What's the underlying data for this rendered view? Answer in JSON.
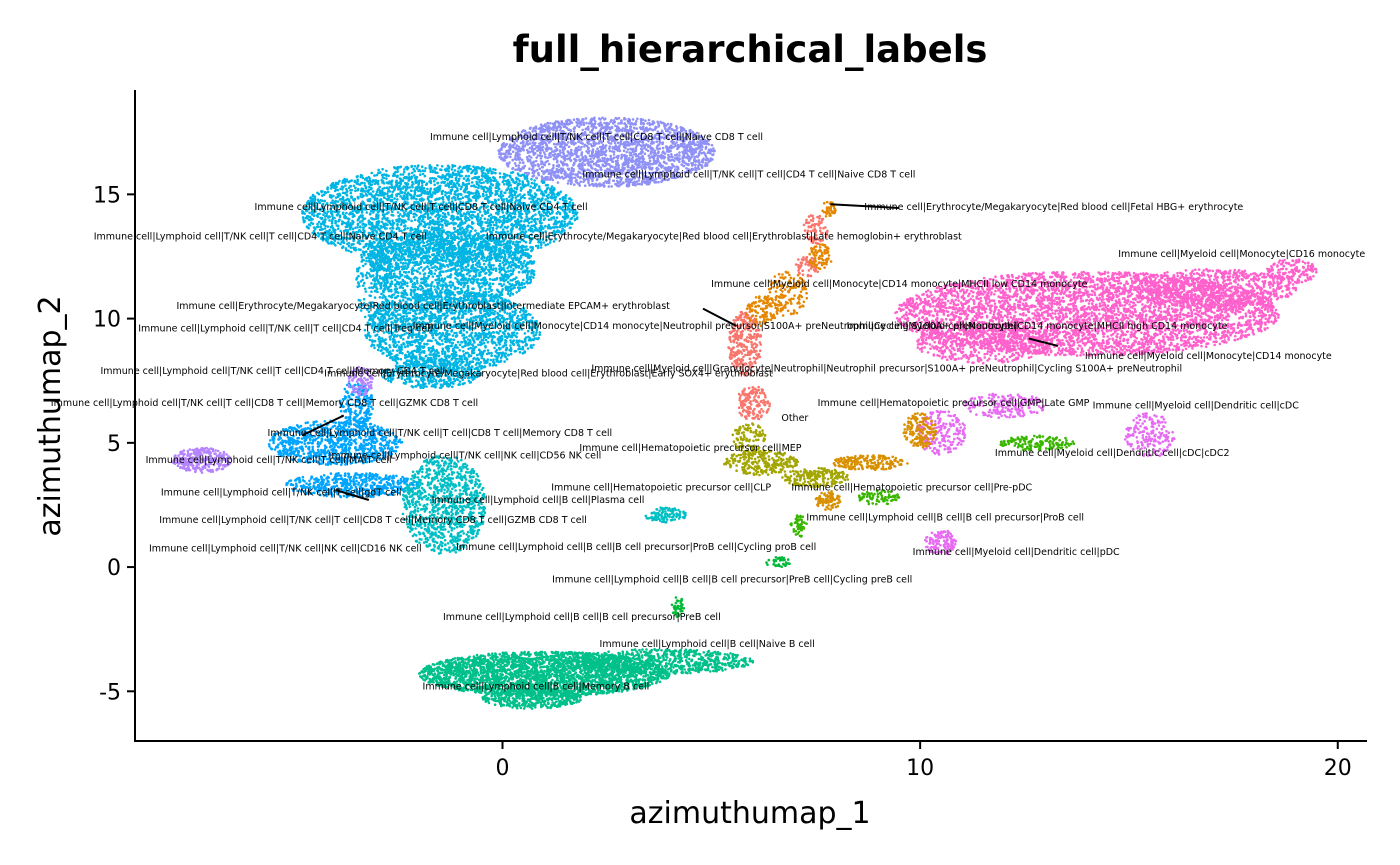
{
  "chart_data": {
    "type": "scatter",
    "title": "full_hierarchical_labels",
    "xlabel": "azimuthumap_1",
    "ylabel": "azimuthumap_2",
    "xlim": [
      -8.8,
      20.7
    ],
    "ylim": [
      -7.0,
      19.2
    ],
    "xticks": [
      {
        "value": 0,
        "label": "0"
      },
      {
        "value": 10,
        "label": "10"
      },
      {
        "value": 20,
        "label": "20"
      }
    ],
    "yticks": [
      {
        "value": -5,
        "label": "-5"
      },
      {
        "value": 0,
        "label": "0"
      },
      {
        "value": 5,
        "label": "5"
      },
      {
        "value": 10,
        "label": "10"
      },
      {
        "value": 15,
        "label": "15"
      }
    ],
    "grid": false,
    "legend": "none",
    "clusters": [
      {
        "color": "#8F91F6",
        "blobs": [
          [
            2.5,
            16.7,
            2.6,
            1.4,
            2200
          ]
        ]
      },
      {
        "color": "#00B5E3",
        "blobs": [
          [
            -1.5,
            14.2,
            3.3,
            2.0,
            3500
          ],
          [
            -1.2,
            12.0,
            2.0,
            1.5,
            1500
          ],
          [
            -1.2,
            9.5,
            2.1,
            1.6,
            1800
          ],
          [
            -1.7,
            7.8,
            1.2,
            0.6,
            400
          ],
          [
            -3.0,
            11.5,
            0.5,
            2.0,
            300
          ]
        ]
      },
      {
        "color": "#00A5FF",
        "blobs": [
          [
            -4.0,
            5.0,
            1.6,
            0.9,
            800
          ],
          [
            -3.6,
            3.3,
            1.6,
            0.5,
            500
          ],
          [
            -3.5,
            6.5,
            0.4,
            1.0,
            200
          ]
        ]
      },
      {
        "color": "#B584FF",
        "blobs": [
          [
            -7.2,
            4.3,
            0.7,
            0.5,
            280
          ],
          [
            -3.4,
            7.5,
            0.3,
            0.6,
            100
          ]
        ]
      },
      {
        "color": "#00BFC4",
        "blobs": [
          [
            -1.4,
            2.5,
            1.0,
            2.0,
            1000
          ],
          [
            3.9,
            2.1,
            0.5,
            0.3,
            100
          ]
        ]
      },
      {
        "color": "#00C08B",
        "blobs": [
          [
            1.0,
            -4.3,
            3.0,
            0.9,
            2800
          ],
          [
            3.8,
            -3.8,
            2.2,
            0.5,
            700
          ],
          [
            0.7,
            -5.3,
            1.2,
            0.4,
            400
          ]
        ]
      },
      {
        "color": "#FF61CC",
        "blobs": [
          [
            14.0,
            10.2,
            4.6,
            1.7,
            4200
          ],
          [
            17.0,
            11.2,
            2.0,
            0.8,
            800
          ],
          [
            11.5,
            9.0,
            1.6,
            0.8,
            500
          ],
          [
            18.9,
            11.9,
            0.6,
            0.5,
            160
          ]
        ]
      },
      {
        "color": "#E76BF3",
        "blobs": [
          [
            10.5,
            5.4,
            0.6,
            0.9,
            220
          ],
          [
            12.0,
            6.5,
            1.0,
            0.5,
            200
          ],
          [
            15.5,
            5.3,
            0.6,
            0.9,
            180
          ],
          [
            10.5,
            1.0,
            0.4,
            0.5,
            120
          ]
        ]
      },
      {
        "color": "#F8766D",
        "blobs": [
          [
            5.8,
            9.0,
            0.4,
            1.3,
            300
          ],
          [
            6.0,
            6.6,
            0.4,
            0.7,
            150
          ],
          [
            7.5,
            13.6,
            0.3,
            0.6,
            80
          ],
          [
            7.3,
            12.1,
            0.3,
            0.4,
            60
          ]
        ]
      },
      {
        "color": "#E58700",
        "blobs": [
          [
            6.8,
            11.0,
            0.5,
            0.9,
            150
          ],
          [
            6.2,
            10.3,
            0.4,
            0.6,
            100
          ],
          [
            7.6,
            12.5,
            0.3,
            0.5,
            80
          ],
          [
            7.8,
            14.4,
            0.2,
            0.3,
            40
          ]
        ]
      },
      {
        "color": "#A3A500",
        "blobs": [
          [
            6.2,
            4.2,
            0.9,
            0.5,
            250
          ],
          [
            7.5,
            3.6,
            0.8,
            0.4,
            200
          ],
          [
            5.9,
            5.2,
            0.4,
            0.6,
            100
          ]
        ]
      },
      {
        "color": "#D89000",
        "blobs": [
          [
            8.8,
            4.2,
            0.9,
            0.3,
            200
          ],
          [
            10.0,
            5.5,
            0.4,
            0.7,
            160
          ],
          [
            7.8,
            2.7,
            0.3,
            0.4,
            80
          ]
        ]
      },
      {
        "color": "#39B600",
        "blobs": [
          [
            12.8,
            5.0,
            0.9,
            0.3,
            150
          ],
          [
            9.0,
            2.8,
            0.5,
            0.3,
            80
          ],
          [
            7.1,
            1.7,
            0.2,
            0.5,
            50
          ]
        ]
      },
      {
        "color": "#00BA38",
        "blobs": [
          [
            4.2,
            -1.6,
            0.15,
            0.4,
            40
          ],
          [
            6.6,
            0.2,
            0.3,
            0.2,
            40
          ]
        ]
      }
    ],
    "annotations": [
      {
        "text": "Immune cell|Lymphoid cell|T/NK cell|T cell|CD8 T cell|Naive CD8 T cell",
        "x": 2.25,
        "y": 17.3
      },
      {
        "text": "Immune cell|Lymphoid cell|T/NK cell|T cell|CD4 T cell|Naive CD8 T cell",
        "x": 5.9,
        "y": 15.8
      },
      {
        "text": "Immune cell|Lymphoid cell|T/NK cell|T cell|CD8 T cell|Naive CD4 T cell",
        "x": -1.95,
        "y": 14.5
      },
      {
        "text": "Immune cell|Lymphoid cell|T/NK cell|T cell|CD4 T cell|Naive CD4 T cell",
        "x": -5.8,
        "y": 13.3
      },
      {
        "text": "Immune cell|Erythrocyte/Megakaryocyte|Red blood cell|Erythroblast|Late hemoglobin+ erythroblast",
        "x": 5.3,
        "y": 13.3
      },
      {
        "text": "Immune cell|Erythrocyte/Megakaryocyte|Red blood cell|Fetal HBG+ erythrocyte",
        "x": 13.2,
        "y": 14.5
      },
      {
        "text": "Immune cell|Myeloid cell|Monocyte|CD16 monocyte",
        "x": 17.7,
        "y": 12.6
      },
      {
        "text": "Immune cell|Myeloid cell|Monocyte|CD14 monocyte|MHCII low CD14 monocyte",
        "x": 9.5,
        "y": 11.4
      },
      {
        "text": "Immune cell|Erythrocyte/Megakaryocyte|Red blood cell|Erythroblast|Intermediate EPCAM+ erythroblast",
        "x": -1.9,
        "y": 10.5
      },
      {
        "text": "Immune cell|Lymphoid cell|T/NK cell|T cell|CD4 T cell|Treg cell",
        "x": -5.2,
        "y": 9.6
      },
      {
        "text": "Immune cell|Myeloid cell|Monocyte|CD14 monocyte|Neutrophil precursor|S100A+ preNeutrophil|Cycling S100A+ preNeutrophil",
        "x": 5.1,
        "y": 9.7
      },
      {
        "text": "Immune cell|Myeloid cell|Monocyte|CD14 monocyte|MHCII high CD14 monocyte",
        "x": 12.8,
        "y": 9.7
      },
      {
        "text": "Immune cell|Myeloid cell|Monocyte|CD14 monocyte",
        "x": 16.9,
        "y": 8.5
      },
      {
        "text": "Immune cell|Lymphoid cell|T/NK cell|T cell|CD4 T cell|Memory CD4 T cell",
        "x": -5.5,
        "y": 7.9
      },
      {
        "text": "Immune cell|Erythrocyte/Megakaryocyte|Red blood cell|Erythroblast|Early SOX4+ erythroblast",
        "x": 1.1,
        "y": 7.8
      },
      {
        "text": "Immune cell|Myeloid cell|Granulocyte|Neutrophil|Neutrophil precursor|S100A+ preNeutrophil|Cycling S100A+ preNeutrophil",
        "x": 9.2,
        "y": 8.0
      },
      {
        "text": "Immune cell|Lymphoid cell|T/NK cell|T cell|CD8 T cell|Memory CD8 T cell|GZMK CD8 T cell",
        "x": -5.7,
        "y": 6.6
      },
      {
        "text": "Other",
        "x": 7.0,
        "y": 6.0
      },
      {
        "text": "Immune cell|Hematopoietic precursor cell|GMP|Late GMP",
        "x": 10.8,
        "y": 6.6
      },
      {
        "text": "Immune cell|Myeloid cell|Dendritic cell|cDC",
        "x": 16.6,
        "y": 6.5
      },
      {
        "text": "Immune cell|Lymphoid cell|T/NK cell|T cell|CD8 T cell|Memory CD8 T cell",
        "x": -1.5,
        "y": 5.4
      },
      {
        "text": "Immune cell|Hematopoietic precursor cell|MEP",
        "x": 4.5,
        "y": 4.8
      },
      {
        "text": "Immune cell|Myeloid cell|Dendritic cell|cDC|cDC2",
        "x": 14.6,
        "y": 4.6
      },
      {
        "text": "Immune cell|Lymphoid cell|T/NK cell|T cell|MAIT cell",
        "x": -5.6,
        "y": 4.3
      },
      {
        "text": "Immune cell|Lymphoid cell|T/NK cell|NK cell|CD56 NK cell",
        "x": -0.9,
        "y": 4.5
      },
      {
        "text": "Immune cell|Hematopoietic precursor cell|CLP",
        "x": 3.8,
        "y": 3.2
      },
      {
        "text": "Immune cell|Hematopoietic precursor cell|Pre-pDC",
        "x": 9.8,
        "y": 3.2
      },
      {
        "text": "Immune cell|Lymphoid cell|T/NK cell|T cell|gdT cell",
        "x": -5.3,
        "y": 3.0
      },
      {
        "text": "Immune cell|Lymphoid cell|B cell|Plasma cell",
        "x": 0.85,
        "y": 2.7
      },
      {
        "text": "Immune cell|Lymphoid cell|T/NK cell|T cell|CD8 T cell|Memory CD8 T cell|GZMB CD8 T cell",
        "x": -3.1,
        "y": 1.9
      },
      {
        "text": "Immune cell|Lymphoid cell|B cell|B cell precursor|ProB cell",
        "x": 10.6,
        "y": 2.0
      },
      {
        "text": "Immune cell|Lymphoid cell|B cell|B cell precursor|ProB cell|Cycling proB cell",
        "x": 3.2,
        "y": 0.8
      },
      {
        "text": "Immune cell|Lymphoid cell|T/NK cell|NK cell|CD16 NK cell",
        "x": -5.2,
        "y": 0.75
      },
      {
        "text": "Immune cell|Myeloid cell|Dendritic cell|pDC",
        "x": 12.3,
        "y": 0.6
      },
      {
        "text": "Immune cell|Lymphoid cell|B cell|B cell precursor|PreB cell|Cycling preB cell",
        "x": 5.5,
        "y": -0.5
      },
      {
        "text": "Immune cell|Lymphoid cell|B cell|B cell precursor|PreB cell",
        "x": 1.9,
        "y": -2.0
      },
      {
        "text": "Immune cell|Lymphoid cell|B cell|Naive B cell",
        "x": 4.9,
        "y": -3.1
      },
      {
        "text": "Immune cell|Lymphoid cell|B cell|Memory B cell",
        "x": 0.8,
        "y": -4.8
      }
    ],
    "leaders": [
      [
        -3.8,
        6.1,
        -4.8,
        5.3
      ],
      [
        -3.2,
        2.7,
        -4.0,
        3.1
      ],
      [
        7.85,
        14.6,
        9.5,
        14.45
      ],
      [
        4.8,
        10.4,
        5.6,
        9.7
      ],
      [
        12.6,
        9.2,
        13.3,
        8.9
      ]
    ]
  }
}
